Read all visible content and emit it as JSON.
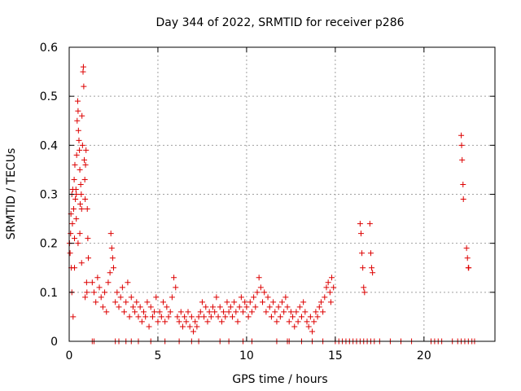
{
  "chart_data": {
    "type": "scatter",
    "title": "Day 344 of 2022, SRMTID for receiver p286",
    "xlabel": "GPS time / hours",
    "ylabel": "SRMTID / TECUs",
    "xlim": [
      0,
      24
    ],
    "ylim": [
      0,
      0.6
    ],
    "x_ticks": [
      "0",
      "5",
      "10",
      "15",
      "20"
    ],
    "y_ticks": [
      "0",
      "0.1",
      "0.2",
      "0.3",
      "0.4",
      "0.5",
      "0.6"
    ],
    "x_tick_values": [
      0,
      5,
      10,
      15,
      20
    ],
    "y_tick_values": [
      0,
      0.1,
      0.2,
      0.3,
      0.4,
      0.5,
      0.6
    ],
    "grid": true,
    "marker": "+",
    "color": "#dd0000",
    "series": [
      {
        "points": [
          [
            0.02,
            0.2
          ],
          [
            0.05,
            0.18
          ],
          [
            0.08,
            0.22
          ],
          [
            0.1,
            0.26
          ],
          [
            0.12,
            0.15
          ],
          [
            0.15,
            0.3
          ],
          [
            0.18,
            0.24
          ],
          [
            0.2,
            0.31
          ],
          [
            0.22,
            0.05
          ],
          [
            0.25,
            0.27
          ],
          [
            0.28,
            0.33
          ],
          [
            0.3,
            0.21
          ],
          [
            0.32,
            0.36
          ],
          [
            0.35,
            0.29
          ],
          [
            0.38,
            0.31
          ],
          [
            0.4,
            0.25
          ],
          [
            0.42,
            0.38
          ],
          [
            0.45,
            0.45
          ],
          [
            0.48,
            0.49
          ],
          [
            0.5,
            0.47
          ],
          [
            0.52,
            0.43
          ],
          [
            0.55,
            0.41
          ],
          [
            0.58,
            0.39
          ],
          [
            0.6,
            0.35
          ],
          [
            0.62,
            0.28
          ],
          [
            0.65,
            0.32
          ],
          [
            0.68,
            0.3
          ],
          [
            0.7,
            0.27
          ],
          [
            0.72,
            0.46
          ],
          [
            0.75,
            0.4
          ],
          [
            0.78,
            0.55
          ],
          [
            0.8,
            0.56
          ],
          [
            0.82,
            0.52
          ],
          [
            0.85,
            0.37
          ],
          [
            0.88,
            0.33
          ],
          [
            0.9,
            0.29
          ],
          [
            0.92,
            0.36
          ],
          [
            0.95,
            0.39
          ],
          [
            0.98,
            0.12
          ],
          [
            1.0,
            0.1
          ],
          [
            1.02,
            0.27
          ],
          [
            1.05,
            0.21
          ],
          [
            1.08,
            0.17
          ],
          [
            0.15,
            0.1
          ],
          [
            0.3,
            0.15
          ],
          [
            0.5,
            0.2
          ],
          [
            0.7,
            0.16
          ],
          [
            0.9,
            0.09
          ],
          [
            0.4,
            0.3
          ],
          [
            0.6,
            0.22
          ],
          [
            1.3,
            0.12
          ],
          [
            1.4,
            0.1
          ],
          [
            1.5,
            0.08
          ],
          [
            1.6,
            0.13
          ],
          [
            1.7,
            0.11
          ],
          [
            1.8,
            0.09
          ],
          [
            1.9,
            0.07
          ],
          [
            2.0,
            0.1
          ],
          [
            2.1,
            0.06
          ],
          [
            2.2,
            0.12
          ],
          [
            2.3,
            0.14
          ],
          [
            2.35,
            0.22
          ],
          [
            2.4,
            0.19
          ],
          [
            2.45,
            0.17
          ],
          [
            2.5,
            0.15
          ],
          [
            2.6,
            0.08
          ],
          [
            2.7,
            0.1
          ],
          [
            2.8,
            0.07
          ],
          [
            2.9,
            0.09
          ],
          [
            3.0,
            0.11
          ],
          [
            3.1,
            0.06
          ],
          [
            3.2,
            0.08
          ],
          [
            3.3,
            0.12
          ],
          [
            3.4,
            0.05
          ],
          [
            3.5,
            0.09
          ],
          [
            3.6,
            0.07
          ],
          [
            3.7,
            0.06
          ],
          [
            3.8,
            0.08
          ],
          [
            3.9,
            0.05
          ],
          [
            4.0,
            0.07
          ],
          [
            4.1,
            0.04
          ],
          [
            4.2,
            0.06
          ],
          [
            4.3,
            0.05
          ],
          [
            4.4,
            0.08
          ],
          [
            4.5,
            0.03
          ],
          [
            4.6,
            0.07
          ],
          [
            4.7,
            0.05
          ],
          [
            4.8,
            0.06
          ],
          [
            4.9,
            0.09
          ],
          [
            5.0,
            0.04
          ],
          [
            5.1,
            0.06
          ],
          [
            5.2,
            0.05
          ],
          [
            5.3,
            0.08
          ],
          [
            5.4,
            0.04
          ],
          [
            5.5,
            0.07
          ],
          [
            5.6,
            0.05
          ],
          [
            5.7,
            0.06
          ],
          [
            5.8,
            0.09
          ],
          [
            5.9,
            0.13
          ],
          [
            6.0,
            0.11
          ],
          [
            6.1,
            0.05
          ],
          [
            6.2,
            0.04
          ],
          [
            6.3,
            0.06
          ],
          [
            6.4,
            0.03
          ],
          [
            6.5,
            0.05
          ],
          [
            6.6,
            0.04
          ],
          [
            6.7,
            0.06
          ],
          [
            6.8,
            0.03
          ],
          [
            6.9,
            0.05
          ],
          [
            7.0,
            0.02
          ],
          [
            7.1,
            0.04
          ],
          [
            7.2,
            0.03
          ],
          [
            7.3,
            0.05
          ],
          [
            7.4,
            0.06
          ],
          [
            7.5,
            0.08
          ],
          [
            7.6,
            0.05
          ],
          [
            7.7,
            0.07
          ],
          [
            7.8,
            0.04
          ],
          [
            7.9,
            0.06
          ],
          [
            8.0,
            0.05
          ],
          [
            8.1,
            0.07
          ],
          [
            8.2,
            0.06
          ],
          [
            8.3,
            0.09
          ],
          [
            8.4,
            0.05
          ],
          [
            8.5,
            0.07
          ],
          [
            8.6,
            0.04
          ],
          [
            8.7,
            0.06
          ],
          [
            8.8,
            0.05
          ],
          [
            8.9,
            0.08
          ],
          [
            9.0,
            0.06
          ],
          [
            9.1,
            0.07
          ],
          [
            9.2,
            0.05
          ],
          [
            9.3,
            0.08
          ],
          [
            9.4,
            0.06
          ],
          [
            9.5,
            0.04
          ],
          [
            9.6,
            0.07
          ],
          [
            9.7,
            0.09
          ],
          [
            9.8,
            0.06
          ],
          [
            9.9,
            0.08
          ],
          [
            10.0,
            0.07
          ],
          [
            10.1,
            0.05
          ],
          [
            10.2,
            0.08
          ],
          [
            10.3,
            0.06
          ],
          [
            10.4,
            0.09
          ],
          [
            10.5,
            0.07
          ],
          [
            10.6,
            0.1
          ],
          [
            10.7,
            0.13
          ],
          [
            10.8,
            0.11
          ],
          [
            10.9,
            0.08
          ],
          [
            11.0,
            0.1
          ],
          [
            11.1,
            0.06
          ],
          [
            11.2,
            0.09
          ],
          [
            11.3,
            0.07
          ],
          [
            11.4,
            0.05
          ],
          [
            11.5,
            0.08
          ],
          [
            11.6,
            0.06
          ],
          [
            11.7,
            0.04
          ],
          [
            11.8,
            0.07
          ],
          [
            11.9,
            0.05
          ],
          [
            12.0,
            0.08
          ],
          [
            12.1,
            0.06
          ],
          [
            12.2,
            0.09
          ],
          [
            12.3,
            0.07
          ],
          [
            12.4,
            0.04
          ],
          [
            12.5,
            0.06
          ],
          [
            12.6,
            0.05
          ],
          [
            12.7,
            0.03
          ],
          [
            12.8,
            0.06
          ],
          [
            12.9,
            0.04
          ],
          [
            13.0,
            0.07
          ],
          [
            13.1,
            0.05
          ],
          [
            13.2,
            0.08
          ],
          [
            13.3,
            0.06
          ],
          [
            13.4,
            0.04
          ],
          [
            13.5,
            0.03
          ],
          [
            13.6,
            0.05
          ],
          [
            13.7,
            0.02
          ],
          [
            13.8,
            0.04
          ],
          [
            13.9,
            0.06
          ],
          [
            14.0,
            0.05
          ],
          [
            14.1,
            0.07
          ],
          [
            14.2,
            0.08
          ],
          [
            14.3,
            0.06
          ],
          [
            14.4,
            0.09
          ],
          [
            14.5,
            0.11
          ],
          [
            14.6,
            0.12
          ],
          [
            14.7,
            0.1
          ],
          [
            14.8,
            0.13
          ],
          [
            14.9,
            0.11
          ],
          [
            14.75,
            0.08
          ],
          [
            16.4,
            0.24
          ],
          [
            16.45,
            0.22
          ],
          [
            16.5,
            0.18
          ],
          [
            16.55,
            0.15
          ],
          [
            16.6,
            0.11
          ],
          [
            16.65,
            0.1
          ],
          [
            16.95,
            0.24
          ],
          [
            17.0,
            0.18
          ],
          [
            17.05,
            0.15
          ],
          [
            17.1,
            0.14
          ],
          [
            22.1,
            0.42
          ],
          [
            22.12,
            0.4
          ],
          [
            22.15,
            0.37
          ],
          [
            22.2,
            0.32
          ],
          [
            22.22,
            0.29
          ],
          [
            22.4,
            0.19
          ],
          [
            22.45,
            0.17
          ],
          [
            22.5,
            0.15
          ],
          [
            22.52,
            0.15
          ],
          [
            1.3,
            0.0
          ],
          [
            1.4,
            0.0
          ],
          [
            2.6,
            0.0
          ],
          [
            2.8,
            0.0
          ],
          [
            3.2,
            0.0
          ],
          [
            3.5,
            0.0
          ],
          [
            3.9,
            0.0
          ],
          [
            4.6,
            0.0
          ],
          [
            5.4,
            0.0
          ],
          [
            6.2,
            0.0
          ],
          [
            6.9,
            0.0
          ],
          [
            7.3,
            0.0
          ],
          [
            8.5,
            0.0
          ],
          [
            9.0,
            0.0
          ],
          [
            9.8,
            0.0
          ],
          [
            10.3,
            0.0
          ],
          [
            11.7,
            0.0
          ],
          [
            12.3,
            0.0
          ],
          [
            12.4,
            0.0
          ],
          [
            13.1,
            0.0
          ],
          [
            13.7,
            0.0
          ],
          [
            14.3,
            0.0
          ],
          [
            15.0,
            0.0
          ],
          [
            15.2,
            0.0
          ],
          [
            15.4,
            0.0
          ],
          [
            15.6,
            0.0
          ],
          [
            15.8,
            0.0
          ],
          [
            16.0,
            0.0
          ],
          [
            16.2,
            0.0
          ],
          [
            16.4,
            0.0
          ],
          [
            16.6,
            0.0
          ],
          [
            16.8,
            0.0
          ],
          [
            17.0,
            0.0
          ],
          [
            17.2,
            0.0
          ],
          [
            17.5,
            0.0
          ],
          [
            18.1,
            0.0
          ],
          [
            18.7,
            0.0
          ],
          [
            19.3,
            0.0
          ],
          [
            20.4,
            0.0
          ],
          [
            20.6,
            0.0
          ],
          [
            20.8,
            0.0
          ],
          [
            21.0,
            0.0
          ],
          [
            21.6,
            0.0
          ],
          [
            21.9,
            0.0
          ],
          [
            22.1,
            0.0
          ],
          [
            22.3,
            0.0
          ],
          [
            22.5,
            0.0
          ],
          [
            22.7,
            0.0
          ],
          [
            22.85,
            0.0
          ]
        ]
      }
    ]
  }
}
